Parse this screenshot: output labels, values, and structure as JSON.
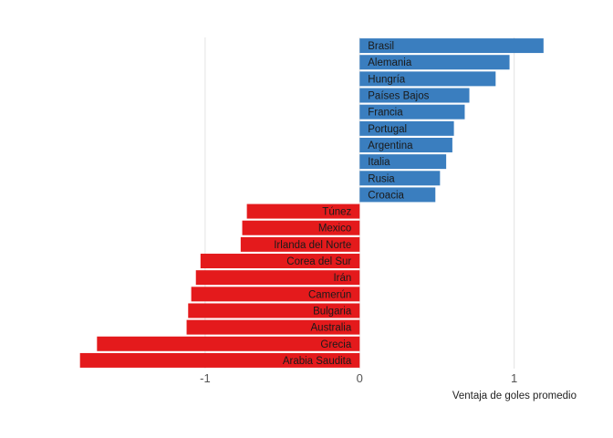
{
  "chart_data": {
    "type": "bar",
    "orientation": "horizontal",
    "title": "",
    "xlabel": "Ventaja de goles promedio",
    "ylabel": "",
    "xlim": [
      -1.82,
      1.25
    ],
    "xticks": [
      -1,
      0,
      1
    ],
    "xtick_labels": [
      "-1",
      "0",
      "1"
    ],
    "grid": "vertical major lines",
    "legend": "none",
    "colors": {
      "positive": "#3a7ebf",
      "negative": "#e41a1c"
    },
    "categories": [
      "Brasil",
      "Alemania",
      "Hungría",
      "Países Bajos",
      "Francia",
      "Portugal",
      "Argentina",
      "Italia",
      "Rusia",
      "Croacia",
      "Túnez",
      "Mexico",
      "Irlanda del Norte",
      "Corea del Sur",
      "Irán",
      "Camerún",
      "Bulgaria",
      "Australia",
      "Grecia",
      "Arabia Saudita"
    ],
    "values": [
      1.19,
      0.97,
      0.88,
      0.71,
      0.68,
      0.61,
      0.6,
      0.56,
      0.52,
      0.49,
      -0.73,
      -0.76,
      -0.77,
      -1.03,
      -1.06,
      -1.09,
      -1.11,
      -1.12,
      -1.7,
      -1.81
    ]
  }
}
